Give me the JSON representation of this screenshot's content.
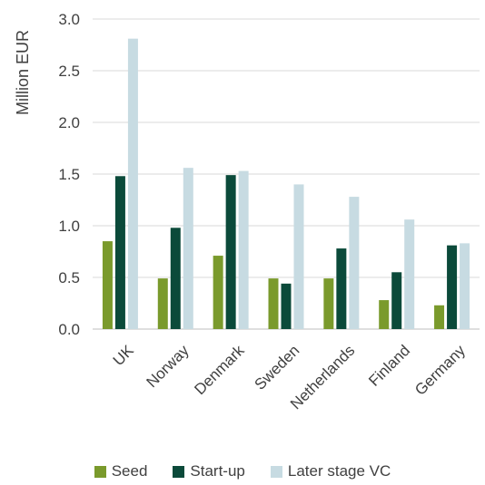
{
  "chart_data": {
    "type": "bar",
    "ylabel": "Million EUR",
    "ylim": [
      0,
      3.0
    ],
    "yticks": [
      "0.0",
      "0.5",
      "1.0",
      "1.5",
      "2.0",
      "2.5",
      "3.0"
    ],
    "grid": true,
    "legend_position": "bottom",
    "categories": [
      "UK",
      "Norway",
      "Denmark",
      "Sweden",
      "Netherlands",
      "Finland",
      "Germany"
    ],
    "series": [
      {
        "name": "Seed",
        "color": "#7a9a2c",
        "values": [
          0.85,
          0.49,
          0.71,
          0.49,
          0.49,
          0.28,
          0.23
        ]
      },
      {
        "name": "Start-up",
        "color": "#0b4a3a",
        "values": [
          1.48,
          0.98,
          1.49,
          0.44,
          0.78,
          0.55,
          0.81
        ]
      },
      {
        "name": "Later stage VC",
        "color": "#c7dbe2",
        "values": [
          2.81,
          1.56,
          1.53,
          1.4,
          1.28,
          1.06,
          0.83
        ]
      }
    ]
  }
}
